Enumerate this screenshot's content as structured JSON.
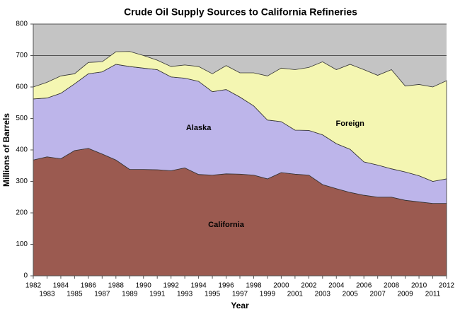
{
  "chart_data": {
    "type": "stacked-area",
    "title": "Crude Oil Supply Sources to California Refineries",
    "x_label": "Year",
    "y_label": "Millions of Barrels",
    "x": [
      1982,
      1983,
      1984,
      1985,
      1986,
      1987,
      1988,
      1989,
      1990,
      1991,
      1992,
      1993,
      1994,
      1995,
      1996,
      1997,
      1998,
      1999,
      2000,
      2001,
      2002,
      2003,
      2004,
      2005,
      2006,
      2007,
      2008,
      2009,
      2010,
      2011,
      2012
    ],
    "series": [
      {
        "name": "California",
        "color": "#9b5a50",
        "values": [
          368,
          378,
          372,
          398,
          405,
          387,
          368,
          338,
          338,
          337,
          334,
          343,
          322,
          320,
          324,
          323,
          320,
          308,
          328,
          323,
          320,
          290,
          277,
          265,
          256,
          250,
          250,
          240,
          235,
          230,
          230
        ]
      },
      {
        "name": "Alaska",
        "color": "#bdb5ea",
        "values": [
          194,
          187,
          208,
          212,
          237,
          261,
          304,
          327,
          322,
          318,
          298,
          285,
          296,
          265,
          268,
          245,
          220,
          187,
          162,
          140,
          142,
          158,
          143,
          137,
          106,
          102,
          90,
          90,
          83,
          70,
          78
        ]
      },
      {
        "name": "Foreign",
        "color": "#f4f6b2",
        "values": [
          38,
          50,
          55,
          32,
          36,
          32,
          40,
          48,
          40,
          30,
          33,
          42,
          47,
          57,
          76,
          77,
          105,
          140,
          170,
          192,
          200,
          232,
          235,
          270,
          293,
          285,
          315,
          273,
          290,
          300,
          312
        ]
      }
    ],
    "xlim": [
      1982,
      2012
    ],
    "xticks": [
      1982,
      1983,
      1984,
      1985,
      1986,
      1987,
      1988,
      1989,
      1990,
      1991,
      1992,
      1993,
      1994,
      1995,
      1996,
      1997,
      1998,
      1999,
      2000,
      2001,
      2002,
      2003,
      2004,
      2005,
      2006,
      2007,
      2008,
      2009,
      2010,
      2011,
      2012
    ],
    "ylim": [
      0,
      800
    ],
    "yticks": [
      0,
      100,
      200,
      300,
      400,
      500,
      600,
      700,
      800
    ],
    "grid": true,
    "background": "#c4c4c4"
  }
}
